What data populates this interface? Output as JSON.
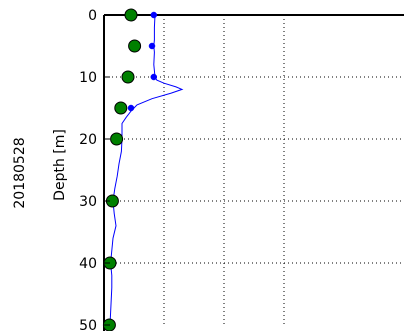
{
  "chart_data": {
    "type": "line",
    "side_label": "20180528",
    "ylabel": "Depth [m]",
    "ylim": [
      0,
      50
    ],
    "y_inverted": true,
    "xlim": [
      0,
      4
    ],
    "y_ticks": [
      0,
      10,
      20,
      30,
      40,
      50
    ],
    "y_tick_labels": [
      "0",
      "10",
      "20",
      "30",
      "40",
      "50"
    ],
    "x_gridlines": [
      1,
      2,
      3
    ],
    "y_gridlines": [
      10,
      20,
      30,
      40
    ],
    "grid": true,
    "colors": {
      "profile": "#0000ff",
      "profile_markers": "#0000ff",
      "samples": "#008000",
      "sample_edge": "#000000",
      "grid": "#000000",
      "frame": "#000000"
    },
    "series": [
      {
        "kind": "profile_line",
        "points": [
          [
            0.85,
            0
          ],
          [
            0.84,
            2
          ],
          [
            0.84,
            4
          ],
          [
            0.83,
            5
          ],
          [
            0.84,
            6
          ],
          [
            0.83,
            8
          ],
          [
            0.85,
            10
          ],
          [
            0.88,
            10.5
          ],
          [
            1.0,
            11
          ],
          [
            1.2,
            11.6
          ],
          [
            1.3,
            12
          ],
          [
            1.12,
            12.6
          ],
          [
            0.8,
            13.5
          ],
          [
            0.55,
            14.5
          ],
          [
            0.45,
            15.5
          ],
          [
            0.37,
            16.5
          ],
          [
            0.3,
            17.5
          ],
          [
            0.3,
            18.5
          ],
          [
            0.3,
            20
          ],
          [
            0.29,
            22
          ],
          [
            0.25,
            24
          ],
          [
            0.22,
            26
          ],
          [
            0.18,
            28
          ],
          [
            0.15,
            30
          ],
          [
            0.17,
            32
          ],
          [
            0.2,
            34
          ],
          [
            0.15,
            36
          ],
          [
            0.13,
            38
          ],
          [
            0.11,
            40
          ],
          [
            0.13,
            42
          ],
          [
            0.13,
            44
          ],
          [
            0.12,
            46
          ],
          [
            0.11,
            48
          ],
          [
            0.1,
            50
          ]
        ]
      },
      {
        "kind": "profile_markers",
        "points": [
          [
            0.83,
            0
          ],
          [
            0.8,
            5
          ],
          [
            0.83,
            10
          ],
          [
            0.45,
            15
          ]
        ]
      },
      {
        "kind": "sample_points",
        "points": [
          [
            0.45,
            0
          ],
          [
            0.51,
            5
          ],
          [
            0.4,
            10
          ],
          [
            0.28,
            15
          ],
          [
            0.21,
            20
          ],
          [
            0.14,
            30
          ],
          [
            0.1,
            40
          ],
          [
            0.09,
            50
          ]
        ]
      }
    ]
  }
}
